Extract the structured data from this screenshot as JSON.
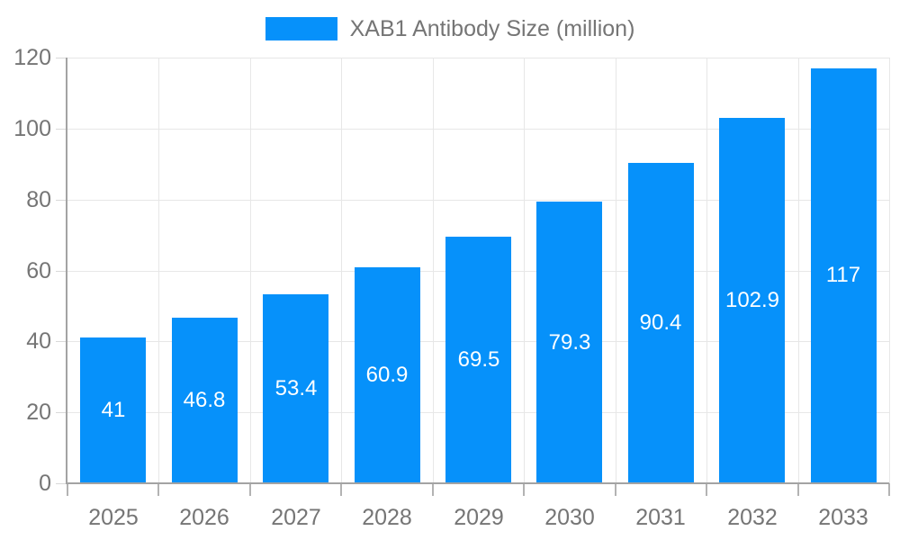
{
  "legend": {
    "label": "XAB1 Antibody Size (million)",
    "swatch_icon": "legend-color-swatch"
  },
  "colors": {
    "bar": "#0691fa",
    "axis": "#a3a3a3",
    "x_tick": "#b3b3b3",
    "y_tick": "#d9d9d9",
    "grid": "#e7e7e7",
    "axis_label": "#757575",
    "bar_label": "#ffffff",
    "background": "#ffffff"
  },
  "chart_data": {
    "type": "bar",
    "title": "XAB1 Antibody Size (million)",
    "categories": [
      "2025",
      "2026",
      "2027",
      "2028",
      "2029",
      "2030",
      "2031",
      "2032",
      "2033"
    ],
    "values": [
      41,
      46.8,
      53.4,
      60.9,
      69.5,
      79.3,
      90.4,
      102.9,
      117
    ],
    "value_labels": [
      "41",
      "46.8",
      "53.4",
      "60.9",
      "69.5",
      "79.3",
      "90.4",
      "102.9",
      "117"
    ],
    "xlabel": "",
    "ylabel": "",
    "ylim": [
      0,
      120
    ],
    "yticks": [
      0,
      20,
      40,
      60,
      80,
      100,
      120
    ],
    "grid": true,
    "legend_position": "top-center",
    "value_label_position": "inside-center"
  }
}
